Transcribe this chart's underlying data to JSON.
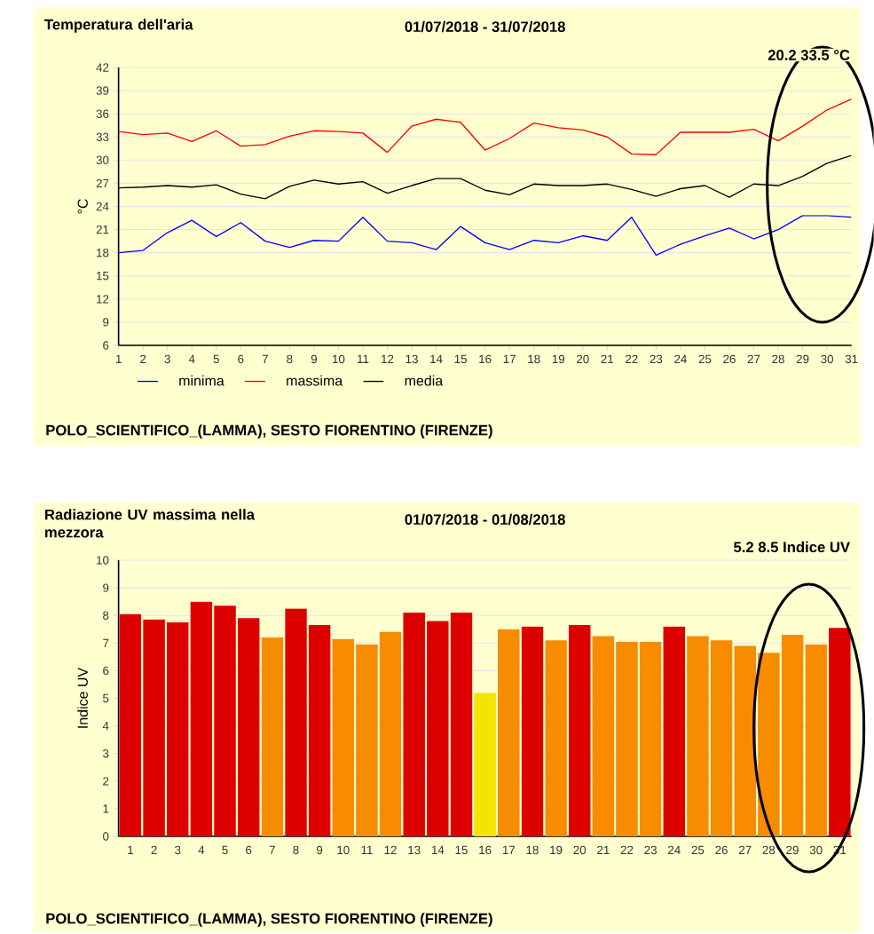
{
  "chart_data": [
    {
      "type": "line",
      "title": "Temperatura dell'aria",
      "subtitle": "01/07/2018 - 31/07/2018",
      "ylabel": "°C",
      "annotations": [
        "20.2  33.5 °C",
        "POLO_SCIENTIFICO_(LAMMA), SESTO FIORENTINO (FIRENZE)"
      ],
      "categories": [
        "1",
        "2",
        "3",
        "4",
        "5",
        "6",
        "7",
        "8",
        "9",
        "10",
        "11",
        "12",
        "13",
        "14",
        "15",
        "16",
        "17",
        "18",
        "19",
        "20",
        "21",
        "22",
        "23",
        "24",
        "25",
        "26",
        "27",
        "28",
        "29",
        "30",
        "31"
      ],
      "series": [
        {
          "name": "minima",
          "color": "#0000ff",
          "values": [
            18.0,
            18.3,
            20.6,
            22.2,
            20.1,
            21.9,
            19.5,
            18.7,
            19.6,
            19.5,
            22.6,
            19.5,
            19.3,
            18.4,
            21.4,
            19.3,
            18.4,
            19.6,
            19.3,
            20.2,
            19.6,
            22.6,
            17.7,
            19.1,
            20.2,
            21.2,
            19.8,
            21.0,
            22.8,
            22.8,
            22.6
          ]
        },
        {
          "name": "massima",
          "color": "#ff0000",
          "values": [
            33.7,
            33.3,
            33.5,
            32.4,
            33.8,
            31.8,
            32.0,
            33.1,
            33.8,
            33.7,
            33.5,
            31.0,
            34.4,
            35.3,
            34.9,
            31.3,
            32.8,
            34.8,
            34.2,
            33.9,
            33.0,
            30.8,
            30.7,
            33.6,
            33.6,
            33.6,
            34.0,
            32.5,
            34.4,
            36.5,
            37.9
          ]
        },
        {
          "name": "media",
          "color": "#000000",
          "values": [
            26.4,
            26.5,
            26.7,
            26.5,
            26.8,
            25.6,
            25.0,
            26.6,
            27.4,
            26.9,
            27.2,
            25.7,
            26.7,
            27.6,
            27.6,
            26.1,
            25.5,
            26.9,
            26.7,
            26.7,
            26.9,
            26.2,
            25.3,
            26.3,
            26.7,
            25.2,
            26.9,
            26.7,
            27.9,
            29.6,
            30.6
          ]
        }
      ],
      "ylim": [
        6,
        42
      ],
      "yticks": [
        6,
        9,
        12,
        15,
        18,
        21,
        24,
        27,
        30,
        33,
        36,
        39,
        42
      ],
      "grid": "y",
      "legend": "bottom",
      "marker": "none",
      "line_style": "solid"
    },
    {
      "type": "bar",
      "title": "Radiazione UV massima nella mezzora",
      "subtitle": "01/07/2018 - 01/08/2018",
      "ylabel": "Indice UV",
      "annotations": [
        "5.2  8.5 Indice UV",
        "POLO_SCIENTIFICO_(LAMMA), SESTO FIORENTINO (FIRENZE)"
      ],
      "categories": [
        "1",
        "2",
        "3",
        "4",
        "5",
        "6",
        "7",
        "8",
        "9",
        "10",
        "11",
        "12",
        "13",
        "14",
        "15",
        "16",
        "17",
        "18",
        "19",
        "20",
        "21",
        "22",
        "23",
        "24",
        "25",
        "26",
        "27",
        "28",
        "29",
        "30",
        "31"
      ],
      "values": [
        8.05,
        7.85,
        7.75,
        8.5,
        8.35,
        7.9,
        7.2,
        8.25,
        7.65,
        7.15,
        6.95,
        7.4,
        8.1,
        7.8,
        8.1,
        5.2,
        7.5,
        7.6,
        7.1,
        7.65,
        7.25,
        7.05,
        7.05,
        7.6,
        7.25,
        7.1,
        6.9,
        6.65,
        7.3,
        6.95,
        7.55
      ],
      "colors": [
        "#dd0000",
        "#dd0000",
        "#dd0000",
        "#dd0000",
        "#dd0000",
        "#dd0000",
        "#f78c00",
        "#dd0000",
        "#dd0000",
        "#f78c00",
        "#f78c00",
        "#f78c00",
        "#dd0000",
        "#dd0000",
        "#dd0000",
        "#f5e400",
        "#f78c00",
        "#dd0000",
        "#f78c00",
        "#dd0000",
        "#f78c00",
        "#f78c00",
        "#f78c00",
        "#dd0000",
        "#f78c00",
        "#f78c00",
        "#f78c00",
        "#f78c00",
        "#f78c00",
        "#f78c00",
        "#dd0000"
      ],
      "ylim": [
        0,
        10
      ],
      "yticks": [
        0,
        1,
        2,
        3,
        4,
        5,
        6,
        7,
        8,
        9,
        10
      ],
      "grid": "y"
    }
  ]
}
